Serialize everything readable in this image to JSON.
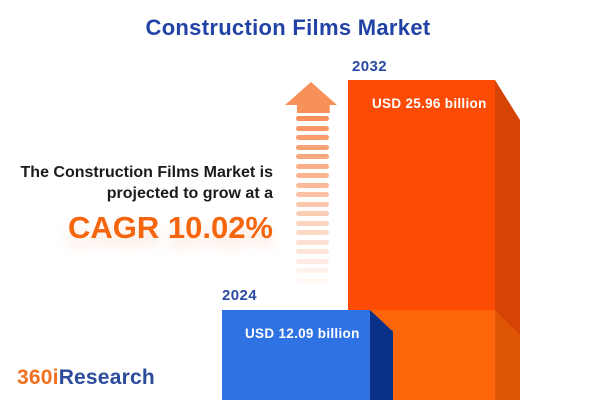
{
  "chart_data": {
    "type": "bar",
    "title": "Construction Films Market",
    "categories": [
      "2024",
      "2032"
    ],
    "values": [
      12.09,
      25.96
    ],
    "unit": "USD billion",
    "value_labels": [
      "USD 12.09 billion",
      "USD 25.96 billion"
    ],
    "cagr_percent": 10.02,
    "annotation": "The Construction Films Market is projected to grow at a CAGR 10.02%",
    "xlabel": "",
    "ylabel": "",
    "grid": false,
    "legend_position": "none"
  },
  "header": {
    "title": "Construction Films Market"
  },
  "annotation": {
    "line1": "The Construction Films Market is",
    "line2": "projected to grow at a",
    "cagr_label": "CAGR 10.02%"
  },
  "bars": {
    "y2024": {
      "year_label": "2024",
      "value_label": "USD 12.09 billion"
    },
    "y2032": {
      "year_label": "2032",
      "value_label": "USD 25.96 billion"
    }
  },
  "icons": {
    "growth_arrow": "growth-arrow-icon"
  },
  "logo": {
    "part_orange": "360i",
    "part_blue": "Research"
  },
  "colors": {
    "title_blue": "#2243a5",
    "year_label_blue": "#2b4aa5",
    "text_dark": "#1b1b1b",
    "cagr_orange": "#f5650e",
    "arrow_orange": "#f8905a",
    "bar_2024_face": "#2f72e4",
    "bar_2024_side": "#0a3187",
    "bar_2032_face_top": "#fb4b05",
    "bar_2032_face_bottom": "#fd650b",
    "bar_2032_side_top": "#d64404",
    "bar_2032_side_bottom": "#de5605",
    "logo_orange": "#f2701f",
    "logo_blue": "#2d4b9b",
    "background": "#ffffff"
  }
}
